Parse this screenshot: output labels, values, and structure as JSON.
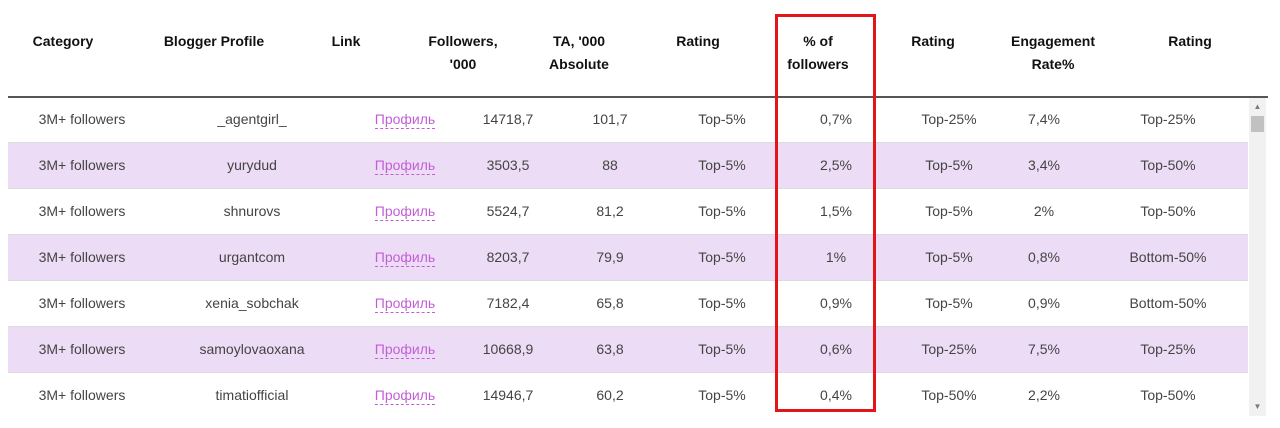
{
  "headers": {
    "category": "Category",
    "blogger": "Blogger Profile",
    "link": "Link",
    "followers_l1": "Followers,",
    "followers_l2": "'000",
    "ta_l1": "TA, '000",
    "ta_l2": "Absolute",
    "rating1": "Rating",
    "pct_l1": "% of",
    "pct_l2": "followers",
    "rating2": "Rating",
    "engagement_l1": "Engagement",
    "engagement_l2": "Rate%",
    "rating3": "Rating"
  },
  "rows": [
    {
      "category": "3M+ followers",
      "blogger": "_agentgirl_",
      "link": "Профиль",
      "followers": "14718,7",
      "ta": "101,7",
      "rating1": "Top-5%",
      "pct": "0,7%",
      "rating2": "Top-25%",
      "engagement": "7,4%",
      "rating3": "Top-25%"
    },
    {
      "category": "3M+ followers",
      "blogger": "yurydud",
      "link": "Профиль",
      "followers": "3503,5",
      "ta": "88",
      "rating1": "Top-5%",
      "pct": "2,5%",
      "rating2": "Top-5%",
      "engagement": "3,4%",
      "rating3": "Top-50%"
    },
    {
      "category": "3M+ followers",
      "blogger": "shnurovs",
      "link": "Профиль",
      "followers": "5524,7",
      "ta": "81,2",
      "rating1": "Top-5%",
      "pct": "1,5%",
      "rating2": "Top-5%",
      "engagement": "2%",
      "rating3": "Top-50%"
    },
    {
      "category": "3M+ followers",
      "blogger": "urgantcom",
      "link": "Профиль",
      "followers": "8203,7",
      "ta": "79,9",
      "rating1": "Top-5%",
      "pct": "1%",
      "rating2": "Top-5%",
      "engagement": "0,8%",
      "rating3": "Bottom-50%"
    },
    {
      "category": "3M+ followers",
      "blogger": "xenia_sobchak",
      "link": "Профиль",
      "followers": "7182,4",
      "ta": "65,8",
      "rating1": "Top-5%",
      "pct": "0,9%",
      "rating2": "Top-5%",
      "engagement": "0,9%",
      "rating3": "Bottom-50%"
    },
    {
      "category": "3M+ followers",
      "blogger": "samoylovaoxana",
      "link": "Профиль",
      "followers": "10668,9",
      "ta": "63,8",
      "rating1": "Top-5%",
      "pct": "0,6%",
      "rating2": "Top-25%",
      "engagement": "7,5%",
      "rating3": "Top-25%"
    },
    {
      "category": "3M+ followers",
      "blogger": "timatiofficial",
      "link": "Профиль",
      "followers": "14946,7",
      "ta": "60,2",
      "rating1": "Top-5%",
      "pct": "0,4%",
      "rating2": "Top-50%",
      "engagement": "2,2%",
      "rating3": "Top-50%"
    }
  ],
  "scrollbar": {
    "up_icon": "▲",
    "down_icon": "▼"
  },
  "colors": {
    "highlight": "#e4141b",
    "row_alt": "#ecdcf5",
    "link": "#c25fd6"
  }
}
